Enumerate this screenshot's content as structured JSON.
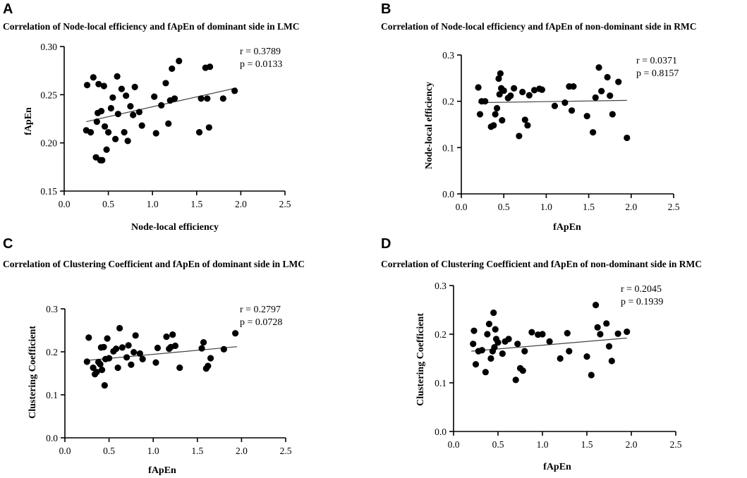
{
  "chart_data": [
    {
      "type": "scatter",
      "panel": "A",
      "title": "Correlation of Node-local efficiency and fApEn of dominant side in LMC",
      "xlabel": "Node-local efficiency",
      "ylabel": "fApEn",
      "xlim": [
        0.0,
        2.5
      ],
      "ylim": [
        0.15,
        0.3
      ],
      "xticks": [
        "0.0",
        "0.5",
        "1.0",
        "1.5",
        "2.0",
        "2.5"
      ],
      "yticks": [
        "0.15",
        "0.20",
        "0.25",
        "0.30"
      ],
      "stats": {
        "r": "r = 0.3789",
        "p": "p = 0.0133"
      },
      "fit": {
        "x": [
          0.25,
          1.95
        ],
        "y": [
          0.222,
          0.257
        ]
      },
      "x": [
        0.25,
        0.26,
        0.3,
        0.33,
        0.36,
        0.37,
        0.38,
        0.39,
        0.41,
        0.42,
        0.43,
        0.45,
        0.46,
        0.48,
        0.5,
        0.53,
        0.55,
        0.58,
        0.6,
        0.61,
        0.65,
        0.68,
        0.7,
        0.72,
        0.75,
        0.78,
        0.8,
        0.85,
        0.88,
        1.02,
        1.04,
        1.1,
        1.15,
        1.18,
        1.2,
        1.22,
        1.25,
        1.3,
        1.53,
        1.55,
        1.6,
        1.62,
        1.64,
        1.65,
        1.8,
        1.93
      ],
      "y": [
        0.213,
        0.26,
        0.211,
        0.268,
        0.185,
        0.222,
        0.231,
        0.261,
        0.182,
        0.233,
        0.182,
        0.259,
        0.217,
        0.193,
        0.211,
        0.236,
        0.247,
        0.204,
        0.269,
        0.23,
        0.256,
        0.211,
        0.249,
        0.202,
        0.238,
        0.229,
        0.258,
        0.232,
        0.218,
        0.248,
        0.21,
        0.239,
        0.262,
        0.22,
        0.244,
        0.277,
        0.246,
        0.285,
        0.211,
        0.246,
        0.278,
        0.246,
        0.216,
        0.279,
        0.246,
        0.254
      ]
    },
    {
      "type": "scatter",
      "panel": "B",
      "title": "Correlation of Node-local efficiency and fApEn of non-dominant side in RMC",
      "xlabel": "fApEn",
      "ylabel": "Node-local efficiency",
      "xlim": [
        0.0,
        2.5
      ],
      "ylim": [
        0.0,
        0.3
      ],
      "xticks": [
        "0.0",
        "0.5",
        "1.0",
        "1.5",
        "2.0",
        "2.5"
      ],
      "yticks": [
        "0.0",
        "0.1",
        "0.2",
        "0.3"
      ],
      "stats": {
        "r": "r = 0.0371",
        "p": "p = 0.8157"
      },
      "fit": {
        "x": [
          0.2,
          1.95
        ],
        "y": [
          0.197,
          0.202
        ]
      },
      "x": [
        0.2,
        0.22,
        0.24,
        0.28,
        0.35,
        0.38,
        0.4,
        0.42,
        0.44,
        0.45,
        0.46,
        0.47,
        0.48,
        0.5,
        0.55,
        0.58,
        0.62,
        0.68,
        0.72,
        0.75,
        0.78,
        0.8,
        0.86,
        0.92,
        0.95,
        1.1,
        1.22,
        1.27,
        1.3,
        1.32,
        1.48,
        1.55,
        1.58,
        1.62,
        1.65,
        1.72,
        1.75,
        1.78,
        1.85,
        1.95
      ],
      "y": [
        0.23,
        0.172,
        0.2,
        0.2,
        0.145,
        0.148,
        0.172,
        0.185,
        0.249,
        0.215,
        0.26,
        0.228,
        0.159,
        0.223,
        0.207,
        0.212,
        0.228,
        0.125,
        0.22,
        0.16,
        0.148,
        0.213,
        0.224,
        0.227,
        0.225,
        0.19,
        0.197,
        0.232,
        0.18,
        0.232,
        0.168,
        0.133,
        0.208,
        0.273,
        0.222,
        0.252,
        0.212,
        0.172,
        0.242,
        0.121
      ]
    },
    {
      "type": "scatter",
      "panel": "C",
      "title": "Correlation of Clustering Coefficient and fApEn of dominant side in LMC",
      "xlabel": "fApEn",
      "ylabel": "Clustering Coefficient",
      "xlim": [
        0.0,
        2.5
      ],
      "ylim": [
        0.0,
        0.3
      ],
      "xticks": [
        "0.0",
        "0.5",
        "1.0",
        "1.5",
        "2.0",
        "2.5"
      ],
      "yticks": [
        "0.0",
        "0.1",
        "0.2",
        "0.3"
      ],
      "stats": {
        "r": "r = 0.2797",
        "p": "p = 0.0728"
      },
      "fit": {
        "x": [
          0.25,
          1.95
        ],
        "y": [
          0.18,
          0.212
        ]
      },
      "x": [
        0.25,
        0.27,
        0.32,
        0.34,
        0.36,
        0.38,
        0.4,
        0.41,
        0.42,
        0.44,
        0.45,
        0.46,
        0.48,
        0.5,
        0.55,
        0.58,
        0.6,
        0.62,
        0.65,
        0.7,
        0.72,
        0.75,
        0.78,
        0.8,
        0.85,
        0.88,
        1.03,
        1.05,
        1.15,
        1.18,
        1.2,
        1.22,
        1.25,
        1.3,
        1.55,
        1.57,
        1.6,
        1.62,
        1.65,
        1.8,
        1.93
      ],
      "y": [
        0.177,
        0.233,
        0.163,
        0.148,
        0.153,
        0.176,
        0.171,
        0.21,
        0.158,
        0.211,
        0.122,
        0.183,
        0.231,
        0.185,
        0.201,
        0.207,
        0.163,
        0.255,
        0.21,
        0.187,
        0.215,
        0.17,
        0.199,
        0.238,
        0.196,
        0.183,
        0.175,
        0.209,
        0.235,
        0.207,
        0.211,
        0.24,
        0.214,
        0.163,
        0.208,
        0.222,
        0.161,
        0.167,
        0.185,
        0.206,
        0.243
      ]
    },
    {
      "type": "scatter",
      "panel": "D",
      "title": "Correlation of Clustering Coefficient and fApEn of non-dominant side in RMC",
      "xlabel": "fApEn",
      "ylabel": "Clustering Coefficient",
      "xlim": [
        0.0,
        2.5
      ],
      "ylim": [
        0.0,
        0.3
      ],
      "xticks": [
        "0.0",
        "0.5",
        "1.0",
        "1.5",
        "2.0",
        "2.5"
      ],
      "yticks": [
        "0.0",
        "0.1",
        "0.2",
        "0.3"
      ],
      "stats": {
        "r": "r = 0.2045",
        "p": "p = 0.1939"
      },
      "fit": {
        "x": [
          0.2,
          1.95
        ],
        "y": [
          0.165,
          0.192
        ]
      },
      "x": [
        0.22,
        0.23,
        0.25,
        0.28,
        0.32,
        0.36,
        0.38,
        0.4,
        0.42,
        0.44,
        0.45,
        0.46,
        0.47,
        0.48,
        0.5,
        0.55,
        0.58,
        0.62,
        0.7,
        0.72,
        0.75,
        0.78,
        0.8,
        0.88,
        0.95,
        1.0,
        1.08,
        1.2,
        1.28,
        1.3,
        1.5,
        1.55,
        1.6,
        1.62,
        1.65,
        1.72,
        1.75,
        1.78,
        1.85,
        1.95
      ],
      "y": [
        0.18,
        0.207,
        0.138,
        0.165,
        0.167,
        0.122,
        0.2,
        0.221,
        0.15,
        0.165,
        0.244,
        0.173,
        0.21,
        0.19,
        0.183,
        0.16,
        0.185,
        0.19,
        0.106,
        0.18,
        0.13,
        0.125,
        0.165,
        0.204,
        0.199,
        0.2,
        0.185,
        0.15,
        0.202,
        0.165,
        0.154,
        0.116,
        0.26,
        0.214,
        0.2,
        0.222,
        0.175,
        0.145,
        0.201,
        0.205
      ]
    }
  ]
}
